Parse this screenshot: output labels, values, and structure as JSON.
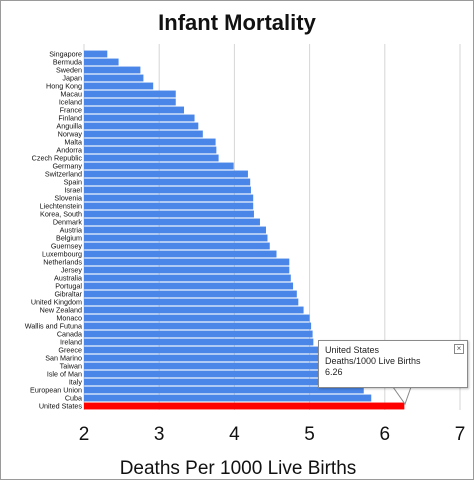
{
  "chart_data": {
    "type": "bar",
    "orientation": "horizontal",
    "title": "Infant Mortality",
    "xlabel": "Deaths Per 1000 Live Births",
    "ylabel": "",
    "xlim": [
      2,
      7
    ],
    "x_ticks": [
      "2",
      "3",
      "4",
      "5",
      "6",
      "7"
    ],
    "grid": "vertical",
    "bar_color": "#4a86e8",
    "highlight_color": "#ff0000",
    "highlight_category": "United States",
    "categories": [
      "Singapore",
      "Bermuda",
      "Sweden",
      "Japan",
      "Hong Kong",
      "Macau",
      "Iceland",
      "France",
      "Finland",
      "Anguilla",
      "Norway",
      "Malta",
      "Andorra",
      "Czech Republic",
      "Germany",
      "Switzerland",
      "Spain",
      "Israel",
      "Slovenia",
      "Liechtenstein",
      "Korea, South",
      "Denmark",
      "Austria",
      "Belgium",
      "Guernsey",
      "Luxembourg",
      "Netherlands",
      "Jersey",
      "Australia",
      "Portugal",
      "Gibraltar",
      "United Kingdom",
      "New Zealand",
      "Monaco",
      "Wallis and Futuna",
      "Canada",
      "Ireland",
      "Greece",
      "San Marino",
      "Taiwan",
      "Isle of Man",
      "Italy",
      "European Union",
      "Cuba",
      "United States"
    ],
    "values": [
      2.31,
      2.46,
      2.75,
      2.79,
      2.92,
      3.22,
      3.22,
      3.33,
      3.47,
      3.52,
      3.58,
      3.75,
      3.76,
      3.79,
      3.99,
      4.18,
      4.21,
      4.22,
      4.25,
      4.25,
      4.26,
      4.34,
      4.42,
      4.44,
      4.47,
      4.56,
      4.73,
      4.73,
      4.75,
      4.78,
      4.83,
      4.85,
      4.92,
      5.0,
      5.02,
      5.04,
      5.05,
      5.16,
      5.34,
      5.35,
      5.37,
      5.51,
      5.72,
      5.82,
      6.26
    ]
  },
  "tooltip": {
    "name": "United States",
    "metric": "Deaths/1000 Live Births",
    "value": "6.26",
    "close_glyph": "×"
  }
}
